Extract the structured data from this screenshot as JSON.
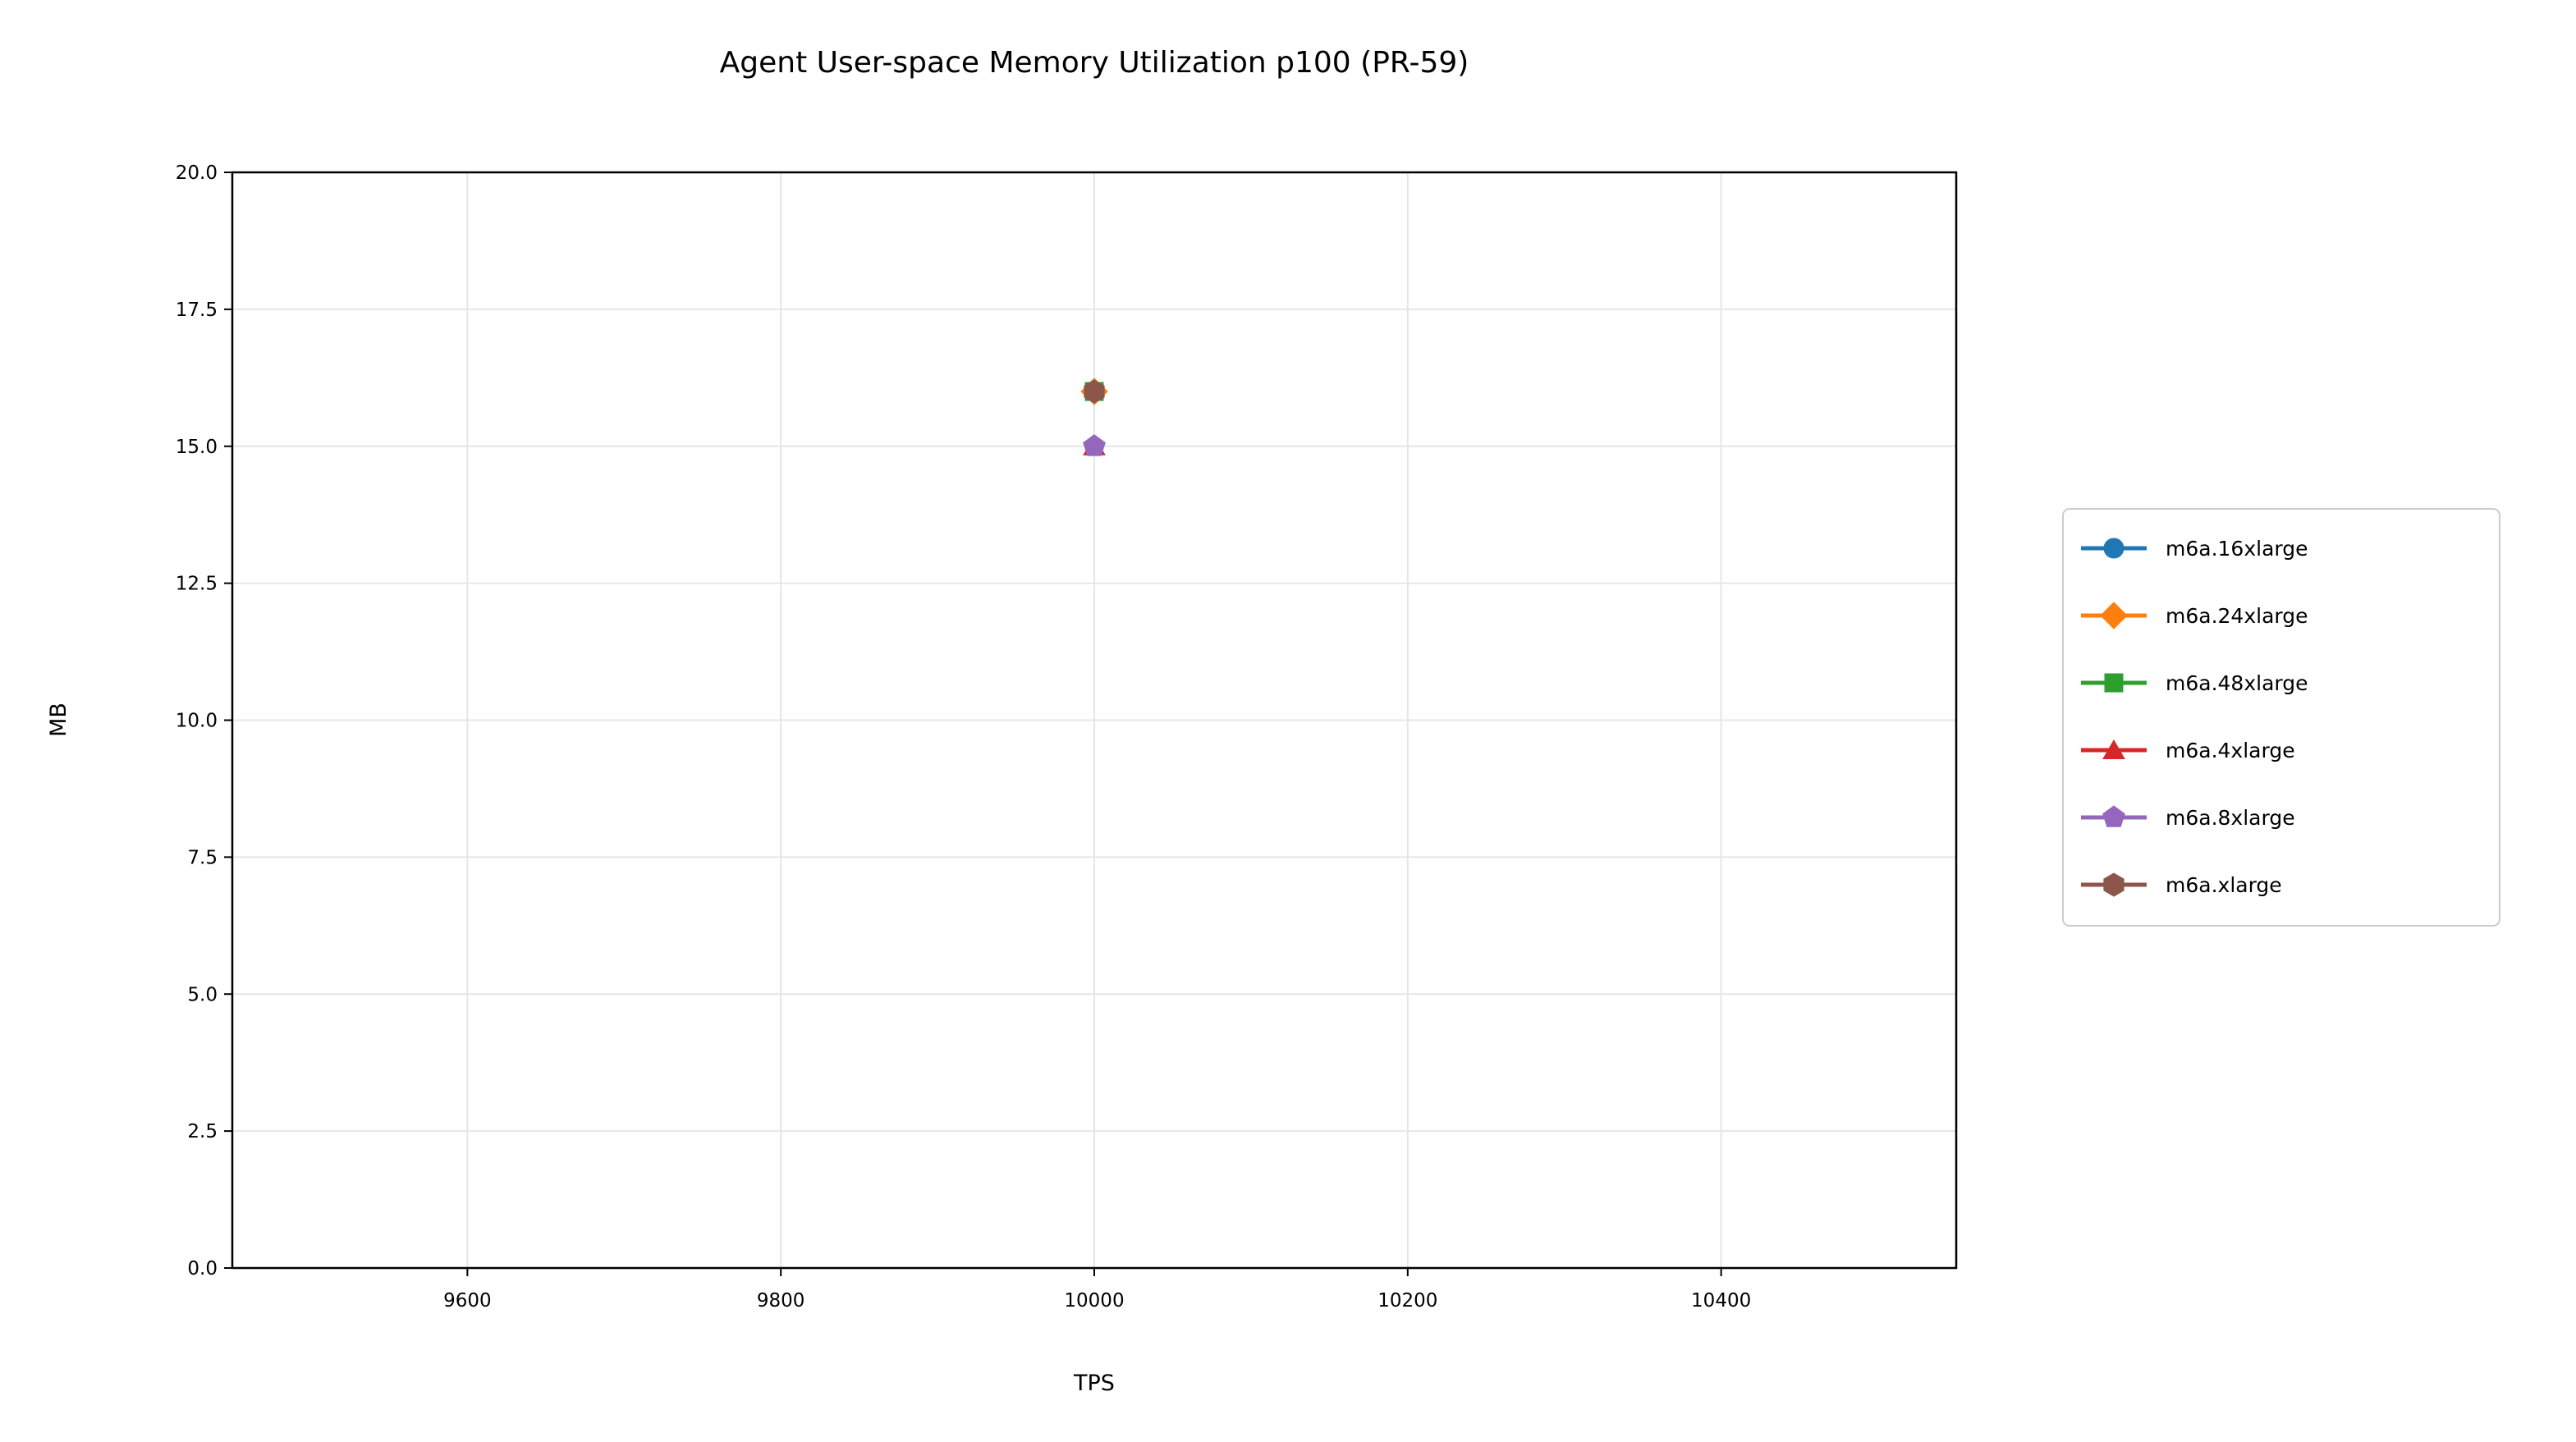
{
  "chart_data": {
    "type": "line",
    "title": "Agent User-space Memory Utilization p100 (PR-59)",
    "xlabel": "TPS",
    "ylabel": "MB",
    "xlim": [
      9450,
      10550
    ],
    "ylim": [
      0,
      20
    ],
    "xticks": [
      9600,
      9800,
      10000,
      10200,
      10400
    ],
    "yticks": [
      0,
      2.5,
      5,
      7.5,
      10,
      12.5,
      15,
      17.5,
      20
    ],
    "ytick_labels": [
      "0.0",
      "2.5",
      "5.0",
      "7.5",
      "10.0",
      "12.5",
      "15.0",
      "17.5",
      "20.0"
    ],
    "grid": true,
    "legend_position": "outside-right",
    "series": [
      {
        "name": "m6a.16xlarge",
        "color": "#1f77b4",
        "marker": "circle",
        "points": [
          {
            "x": 10000,
            "y": 16
          }
        ]
      },
      {
        "name": "m6a.24xlarge",
        "color": "#ff7f0e",
        "marker": "diamond",
        "points": [
          {
            "x": 10000,
            "y": 16
          }
        ]
      },
      {
        "name": "m6a.48xlarge",
        "color": "#2ca02c",
        "marker": "square",
        "points": [
          {
            "x": 10000,
            "y": 16
          }
        ]
      },
      {
        "name": "m6a.4xlarge",
        "color": "#d62728",
        "marker": "triangle",
        "points": [
          {
            "x": 10000,
            "y": 15
          }
        ]
      },
      {
        "name": "m6a.8xlarge",
        "color": "#9467bd",
        "marker": "pentagon",
        "points": [
          {
            "x": 10000,
            "y": 15
          }
        ]
      },
      {
        "name": "m6a.xlarge",
        "color": "#8c564b",
        "marker": "hexagon",
        "points": [
          {
            "x": 10000,
            "y": 16
          }
        ]
      }
    ]
  }
}
